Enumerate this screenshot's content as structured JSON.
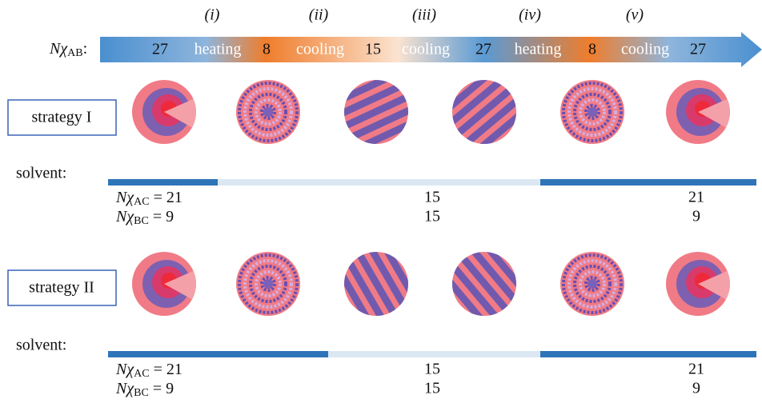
{
  "steps": [
    "(i)",
    "(ii)",
    "(iii)",
    "(iv)",
    "(v)"
  ],
  "arrow": {
    "label": {
      "symbol": "Nχ",
      "subscript": "AB",
      "suffix": ":"
    },
    "sequence": [
      "27",
      "heating",
      "8",
      "cooling",
      "15",
      "cooling",
      "27",
      "heating",
      "8",
      "cooling",
      "27"
    ]
  },
  "strategies": [
    {
      "name": "strategy I",
      "solvent": "solvent:",
      "rows": [
        {
          "symbol": "Nχ",
          "subscript": "AC",
          "values": [
            "= 21",
            "15",
            "21"
          ]
        },
        {
          "symbol": "Nχ",
          "subscript": "BC",
          "values": [
            "= 9",
            "15",
            "9"
          ]
        }
      ]
    },
    {
      "name": "strategy II",
      "solvent": "solvent:",
      "rows": [
        {
          "symbol": "Nχ",
          "subscript": "AC",
          "values": [
            "= 21",
            "15",
            "21"
          ]
        },
        {
          "symbol": "Nχ",
          "subscript": "BC",
          "values": [
            "= 9",
            "15",
            "9"
          ]
        }
      ]
    }
  ]
}
